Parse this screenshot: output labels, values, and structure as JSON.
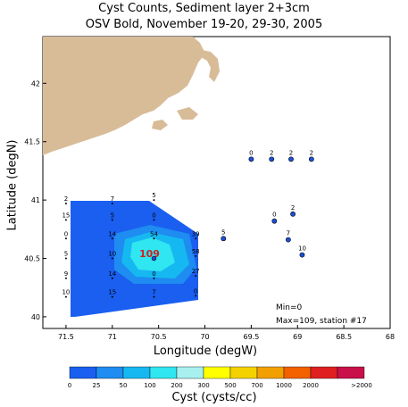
{
  "title": {
    "line1": "Cyst Counts, Sediment layer 2+3cm",
    "line2": "OSV Bold, November 19-20, 29-30, 2005"
  },
  "axes": {
    "xlabel": "Longitude (degW)",
    "ylabel": "Latitude (degN)",
    "xticks": [
      "71.5",
      "71",
      "70.5",
      "70",
      "69.5",
      "69",
      "68.5",
      "68"
    ],
    "yticks": [
      "40",
      "40.5",
      "41",
      "41.5",
      "42"
    ],
    "xlim": [
      71.75,
      68.0
    ],
    "ylim": [
      39.9,
      42.4
    ]
  },
  "annotations": {
    "min_text": "Min=0",
    "max_text": "Max=109, station #17",
    "peak_value": "109"
  },
  "colorbar": {
    "title": "Cyst (cysts/cc)",
    "labels": [
      "0",
      "25",
      "50",
      "100",
      "200",
      "300",
      "500",
      "700",
      "1000",
      "2000",
      ">2000"
    ],
    "colors": [
      "#1a5ff0",
      "#1e8cf0",
      "#16b8f2",
      "#30e6f0",
      "#a8f0f0",
      "#ffff00",
      "#f4d200",
      "#f2a000",
      "#f26000",
      "#e02020",
      "#c8104a"
    ]
  },
  "colors": {
    "land": "#d8bc98",
    "station": "#1a50d8",
    "station_outline": "#000000",
    "contour_low": "#1a5ff0",
    "contour_mid": "#1e8cf0",
    "contour_high": "#16b8f2",
    "contour_peak": "#30e6f0",
    "peak_text": "#d02020"
  },
  "chart_data": {
    "type": "map",
    "stations_offshore": [
      {
        "lon": 69.5,
        "lat": 41.35,
        "value": "0"
      },
      {
        "lon": 69.28,
        "lat": 41.35,
        "value": "2"
      },
      {
        "lon": 69.07,
        "lat": 41.35,
        "value": "2"
      },
      {
        "lon": 68.85,
        "lat": 41.35,
        "value": "2"
      },
      {
        "lon": 69.25,
        "lat": 40.82,
        "value": "0"
      },
      {
        "lon": 69.05,
        "lat": 40.88,
        "value": "2"
      },
      {
        "lon": 69.1,
        "lat": 40.66,
        "value": "7"
      },
      {
        "lon": 68.95,
        "lat": 40.53,
        "value": "10"
      },
      {
        "lon": 69.8,
        "lat": 40.67,
        "value": "5"
      }
    ],
    "stations_grid": [
      {
        "lon": 71.5,
        "lat": 40.97,
        "value": "2"
      },
      {
        "lon": 71.5,
        "lat": 40.83,
        "value": "15"
      },
      {
        "lon": 71.5,
        "lat": 40.67,
        "value": "0"
      },
      {
        "lon": 71.5,
        "lat": 40.5,
        "value": "5"
      },
      {
        "lon": 71.5,
        "lat": 40.33,
        "value": "9"
      },
      {
        "lon": 71.5,
        "lat": 40.17,
        "value": "10"
      },
      {
        "lon": 71.0,
        "lat": 40.97,
        "value": "7"
      },
      {
        "lon": 71.0,
        "lat": 40.83,
        "value": "5"
      },
      {
        "lon": 71.0,
        "lat": 40.67,
        "value": "14"
      },
      {
        "lon": 71.0,
        "lat": 40.5,
        "value": "10"
      },
      {
        "lon": 71.0,
        "lat": 40.33,
        "value": "14"
      },
      {
        "lon": 71.0,
        "lat": 40.17,
        "value": "15"
      },
      {
        "lon": 70.55,
        "lat": 41.0,
        "value": "5"
      },
      {
        "lon": 70.55,
        "lat": 40.83,
        "value": "0"
      },
      {
        "lon": 70.55,
        "lat": 40.67,
        "value": "54"
      },
      {
        "lon": 70.55,
        "lat": 40.33,
        "value": "0"
      },
      {
        "lon": 70.55,
        "lat": 40.17,
        "value": "7"
      },
      {
        "lon": 70.1,
        "lat": 40.67,
        "value": "39"
      },
      {
        "lon": 70.1,
        "lat": 40.52,
        "value": "58"
      },
      {
        "lon": 70.1,
        "lat": 40.35,
        "value": "27"
      },
      {
        "lon": 70.1,
        "lat": 40.18,
        "value": "0"
      }
    ],
    "peak_station": {
      "lon": 70.55,
      "lat": 40.5,
      "value": 109,
      "station": 17
    }
  }
}
